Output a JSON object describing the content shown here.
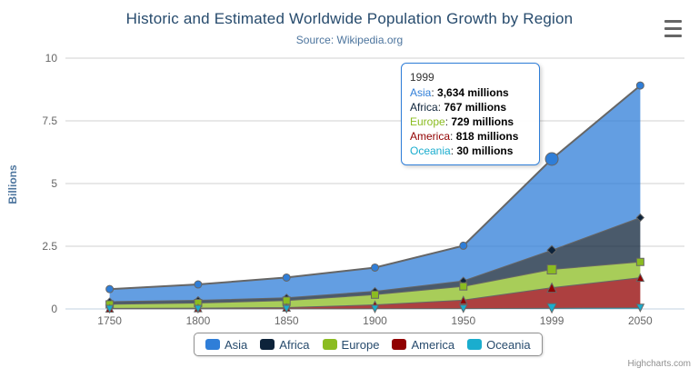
{
  "chart_data": {
    "type": "area",
    "stacking": "normal",
    "title": "Historic and Estimated Worldwide Population Growth by Region",
    "subtitle": "Source: Wikipedia.org",
    "xlabel": "",
    "ylabel": "Billions",
    "categories": [
      "1750",
      "1800",
      "1850",
      "1900",
      "1950",
      "1999",
      "2050"
    ],
    "values_unit": "millions",
    "series": [
      {
        "name": "Asia",
        "color": "#2f7ed8",
        "marker": "circle",
        "values": [
          502,
          635,
          809,
          947,
          1402,
          3634,
          5268
        ]
      },
      {
        "name": "Africa",
        "color": "#0d233a",
        "marker": "diamond",
        "values": [
          106,
          107,
          111,
          133,
          221,
          767,
          1766
        ]
      },
      {
        "name": "Europe",
        "color": "#8bbc21",
        "marker": "square",
        "values": [
          163,
          203,
          276,
          408,
          547,
          729,
          628
        ]
      },
      {
        "name": "America",
        "color": "#910000",
        "marker": "triangle",
        "values": [
          18,
          31,
          54,
          156,
          339,
          818,
          1201
        ]
      },
      {
        "name": "Oceania",
        "color": "#1aadce",
        "marker": "triangle-down",
        "values": [
          2,
          2,
          2,
          6,
          13,
          30,
          46
        ]
      }
    ],
    "stack_order_bottom_to_top": [
      "Oceania",
      "America",
      "Europe",
      "Africa",
      "Asia"
    ],
    "yticks": [
      0,
      2.5,
      5,
      7.5,
      10
    ],
    "ylim": [
      0,
      10
    ],
    "grid": true,
    "legend_position": "bottom",
    "hover_index": 5,
    "line_color": "#666666",
    "grid_color": "#d0d0d0",
    "axis_line_color": "#c0d0e0",
    "fill_opacity": 0.75
  },
  "tooltip": {
    "header": "1999",
    "rows": [
      {
        "label": "Asia",
        "value": "3,634 millions"
      },
      {
        "label": "Africa",
        "value": "767 millions"
      },
      {
        "label": "Europe",
        "value": "729 millions"
      },
      {
        "label": "America",
        "value": "818 millions"
      },
      {
        "label": "Oceania",
        "value": "30 millions"
      }
    ]
  },
  "credits": "Highcharts.com",
  "menu_icon": "hamburger-menu"
}
